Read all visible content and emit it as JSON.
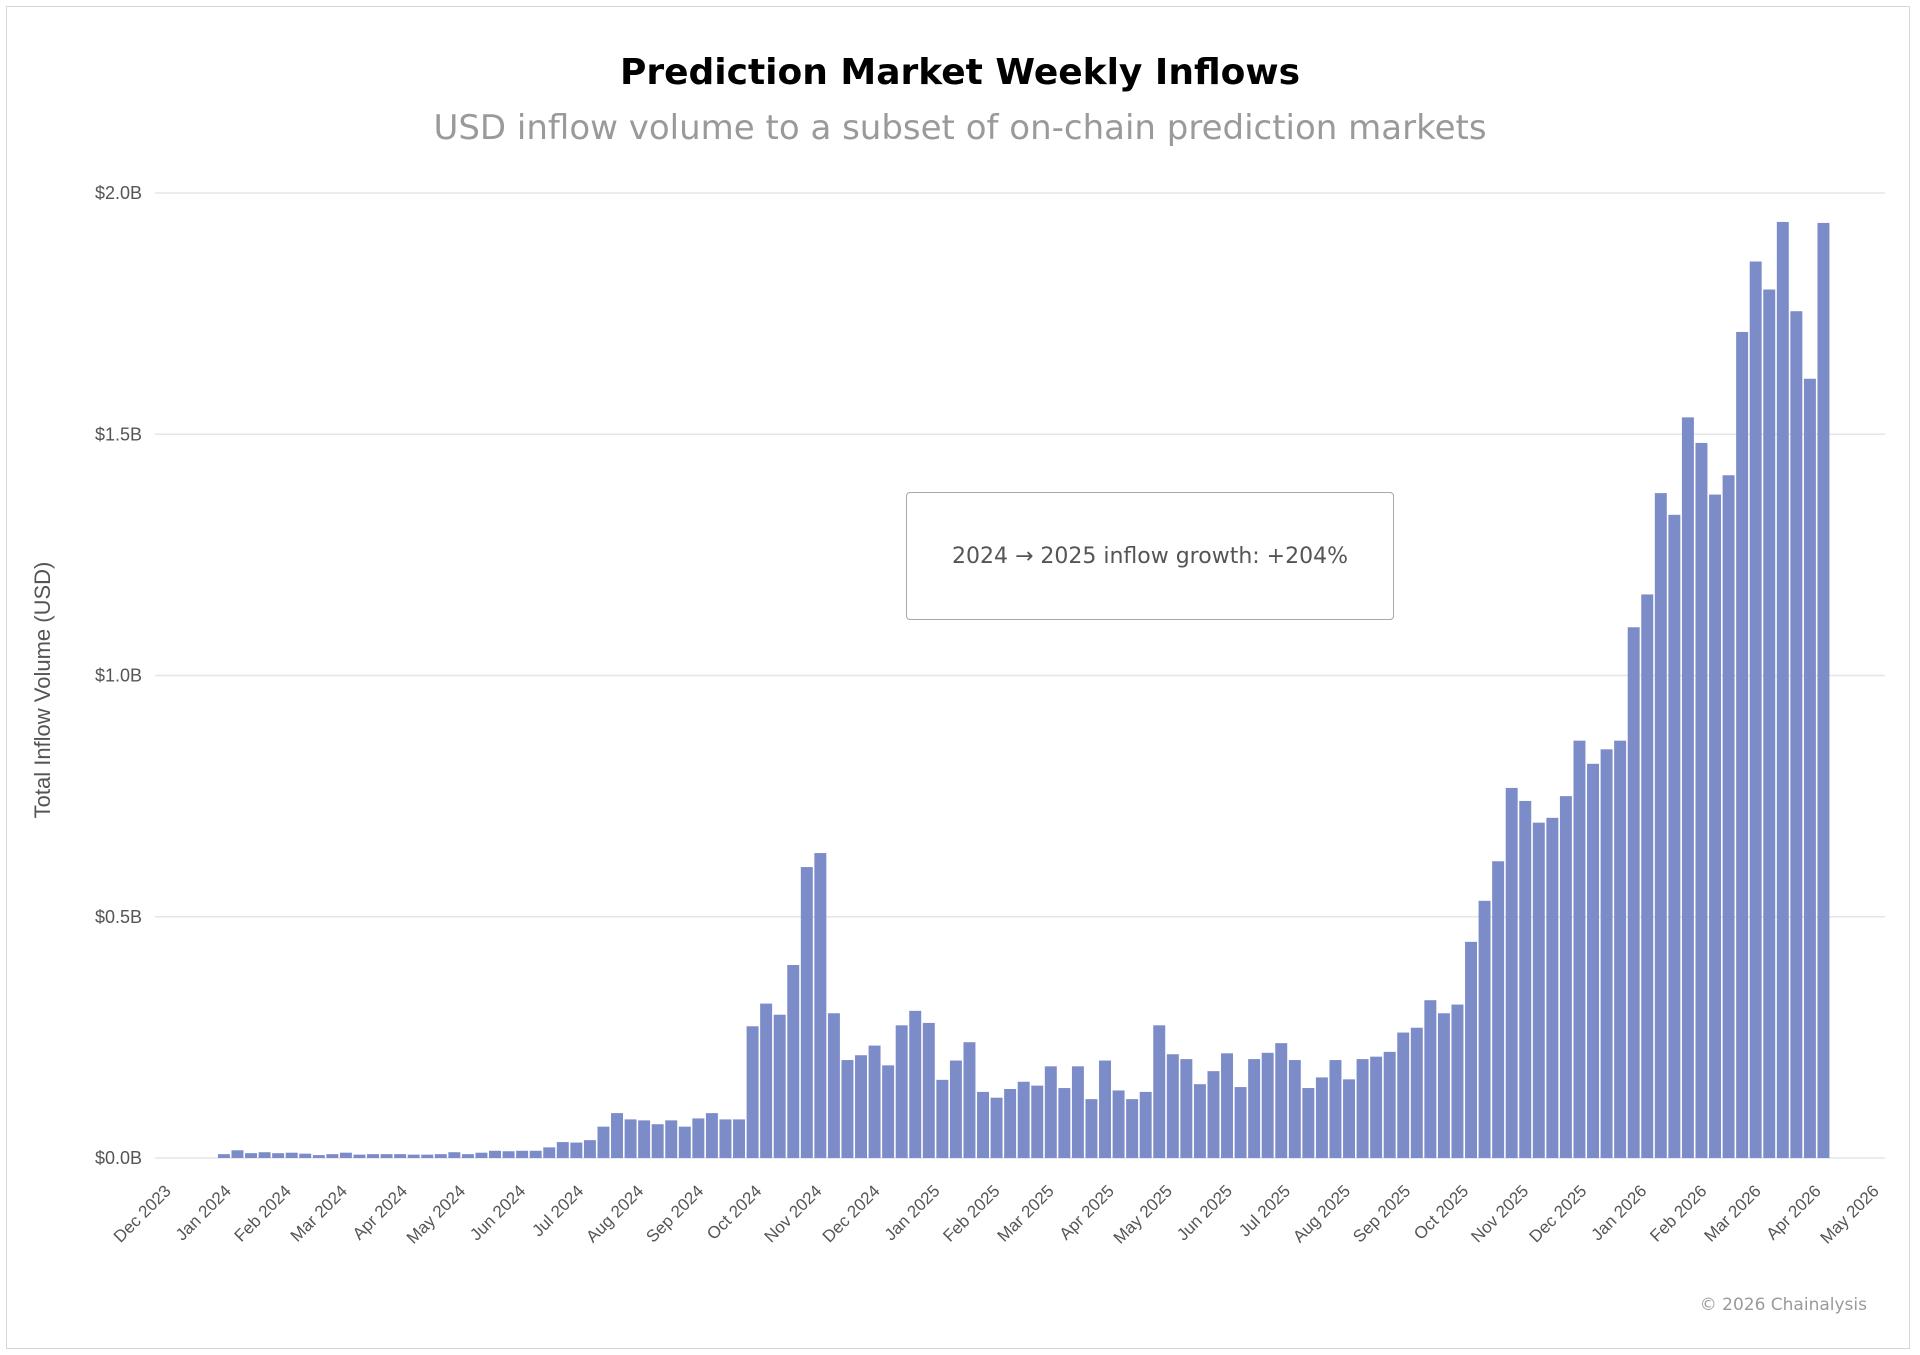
{
  "header": {
    "title": "Prediction Market Weekly Inflows",
    "subtitle": "USD inflow volume to a subset of on-chain prediction markets"
  },
  "footer": {
    "credit": "© 2026 Chainalysis"
  },
  "colors": {
    "bar": "#7c8cc8",
    "grid": "#e6e6e6",
    "text": "#555555"
  },
  "chart_data": {
    "type": "bar",
    "title": "Prediction Market Weekly Inflows",
    "subtitle": "USD inflow volume to a subset of on-chain prediction markets",
    "ylabel": "Total Inflow Volume (USD)",
    "xlabel": "",
    "ylim": [
      0,
      2.0
    ],
    "y_unit": "billion USD",
    "y_ticks": [
      "$0.0B",
      "$0.5B",
      "$1.0B",
      "$1.5B",
      "$2.0B"
    ],
    "x_ticks": [
      "Dec 2023",
      "Jan 2024",
      "Feb 2024",
      "Mar 2024",
      "Apr 2024",
      "May 2024",
      "Jun 2024",
      "Jul 2024",
      "Aug 2024",
      "Sep 2024",
      "Oct 2024",
      "Nov 2024",
      "Dec 2024",
      "Jan 2025",
      "Feb 2025",
      "Mar 2025",
      "Apr 2025",
      "May 2025",
      "Jun 2025",
      "Jul 2025",
      "Aug 2025",
      "Sep 2025",
      "Oct 2025",
      "Nov 2025",
      "Dec 2025",
      "Jan 2026",
      "Feb 2026",
      "Mar 2026",
      "Apr 2026",
      "May 2026"
    ],
    "grid": true,
    "legend": "none",
    "first_week": "2024-01-03",
    "week_values": [
      0.008,
      0.016,
      0.01,
      0.012,
      0.01,
      0.011,
      0.009,
      0.006,
      0.008,
      0.011,
      0.007,
      0.008,
      0.008,
      0.008,
      0.007,
      0.007,
      0.008,
      0.012,
      0.008,
      0.011,
      0.015,
      0.014,
      0.015,
      0.015,
      0.022,
      0.033,
      0.032,
      0.037,
      0.065,
      0.093,
      0.08,
      0.078,
      0.07,
      0.078,
      0.065,
      0.082,
      0.093,
      0.08,
      0.08,
      0.273,
      0.32,
      0.297,
      0.4,
      0.603,
      0.632,
      0.3,
      0.203,
      0.213,
      0.233,
      0.192,
      0.275,
      0.305,
      0.28,
      0.162,
      0.202,
      0.24,
      0.137,
      0.125,
      0.143,
      0.158,
      0.15,
      0.19,
      0.145,
      0.19,
      0.122,
      0.202,
      0.14,
      0.122,
      0.137,
      0.275,
      0.215,
      0.205,
      0.153,
      0.18,
      0.217,
      0.147,
      0.205,
      0.218,
      0.238,
      0.203,
      0.145,
      0.167,
      0.203,
      0.163,
      0.205,
      0.21,
      0.22,
      0.26,
      0.27,
      0.327,
      0.3,
      0.318,
      0.448,
      0.533,
      0.615,
      0.767,
      0.74,
      0.695,
      0.705,
      0.75,
      0.865,
      0.817,
      0.847,
      0.865,
      1.1,
      1.168,
      1.378,
      1.333,
      1.535,
      1.482,
      1.375,
      1.415,
      1.712,
      1.858,
      1.8,
      1.94,
      1.755,
      1.615,
      1.938
    ],
    "annotation": "2024 → 2025 inflow growth: +204%"
  }
}
